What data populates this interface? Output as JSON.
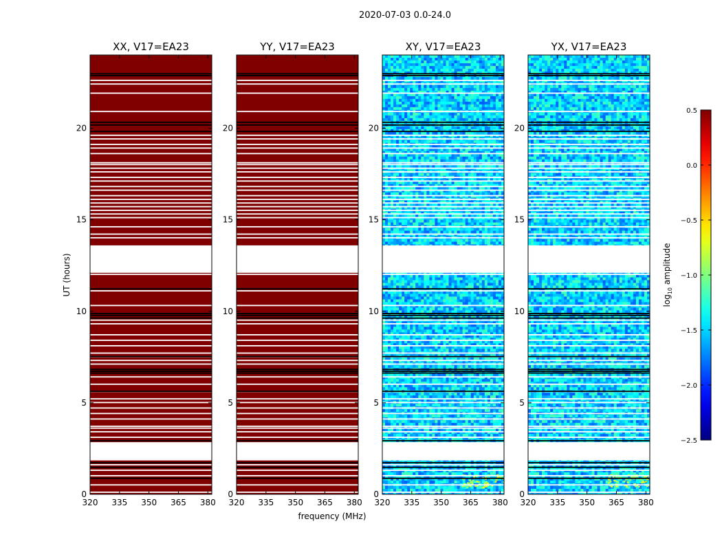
{
  "figure": {
    "suptitle": "2020-07-03 0.0-24.0"
  },
  "chart_data": {
    "type": "heatmap",
    "suptitle": "2020-07-03 0.0-24.0",
    "xlabel": "frequency (MHz)",
    "ylabel": "UT (hours)",
    "xlim": [
      320,
      382
    ],
    "ylim": [
      0,
      24
    ],
    "xticks": [
      320,
      335,
      350,
      365,
      380
    ],
    "yticks": [
      0,
      5,
      10,
      15,
      20
    ],
    "panels": [
      {
        "title": "XX, V17=EA23",
        "kind": "parallel",
        "base_log_amplitude": 0.5
      },
      {
        "title": "YY, V17=EA23",
        "kind": "parallel",
        "base_log_amplitude": 0.5
      },
      {
        "title": "XY, V17=EA23",
        "kind": "cross",
        "base_log_amplitude": -1.5
      },
      {
        "title": "YX, V17=EA23",
        "kind": "cross",
        "base_log_amplitude": -1.5
      }
    ],
    "gaps_hours": [
      [
        1.85,
        2.85
      ],
      [
        12.1,
        13.6
      ]
    ],
    "flagged_rows_hours": [
      0.05,
      0.45,
      0.95,
      1.25,
      1.55,
      3.05,
      3.35,
      3.55,
      3.65,
      4.05,
      4.35,
      4.65,
      4.95,
      5.15,
      5.55,
      5.95,
      6.35,
      7.05,
      7.25,
      7.45,
      7.65,
      8.05,
      8.35,
      8.65,
      9.25,
      9.45,
      10.25,
      11.05,
      11.95,
      13.95,
      14.15,
      14.55,
      15.05,
      15.25,
      15.45,
      15.65,
      15.85,
      16.05,
      16.25,
      16.55,
      16.75,
      17.05,
      17.25,
      17.55,
      17.75,
      17.95,
      18.05,
      18.55,
      18.85,
      19.05,
      19.35,
      19.55,
      20.85,
      21.85,
      22.35,
      22.55,
      23.95
    ],
    "black_rows_hours": [
      0.85,
      1.45,
      1.7,
      2.9,
      5.6,
      6.6,
      6.7,
      6.8,
      7.5,
      9.6,
      9.75,
      9.85,
      11.2,
      19.8,
      20.15,
      20.3,
      22.85,
      22.95
    ],
    "colorbar": {
      "label": "log10 amplitude",
      "label_base": "log",
      "label_sub": "10",
      "label_rest": " amplitude",
      "min": -2.5,
      "max": 0.5,
      "ticks": [
        0.5,
        0.0,
        -0.5,
        -1.0,
        -1.5,
        -2.0,
        -2.5
      ],
      "tick_labels": [
        "0.5",
        "0.0",
        "−0.5",
        "−1.0",
        "−1.5",
        "−2.0",
        "−2.5"
      ],
      "colormap": "jet"
    }
  }
}
